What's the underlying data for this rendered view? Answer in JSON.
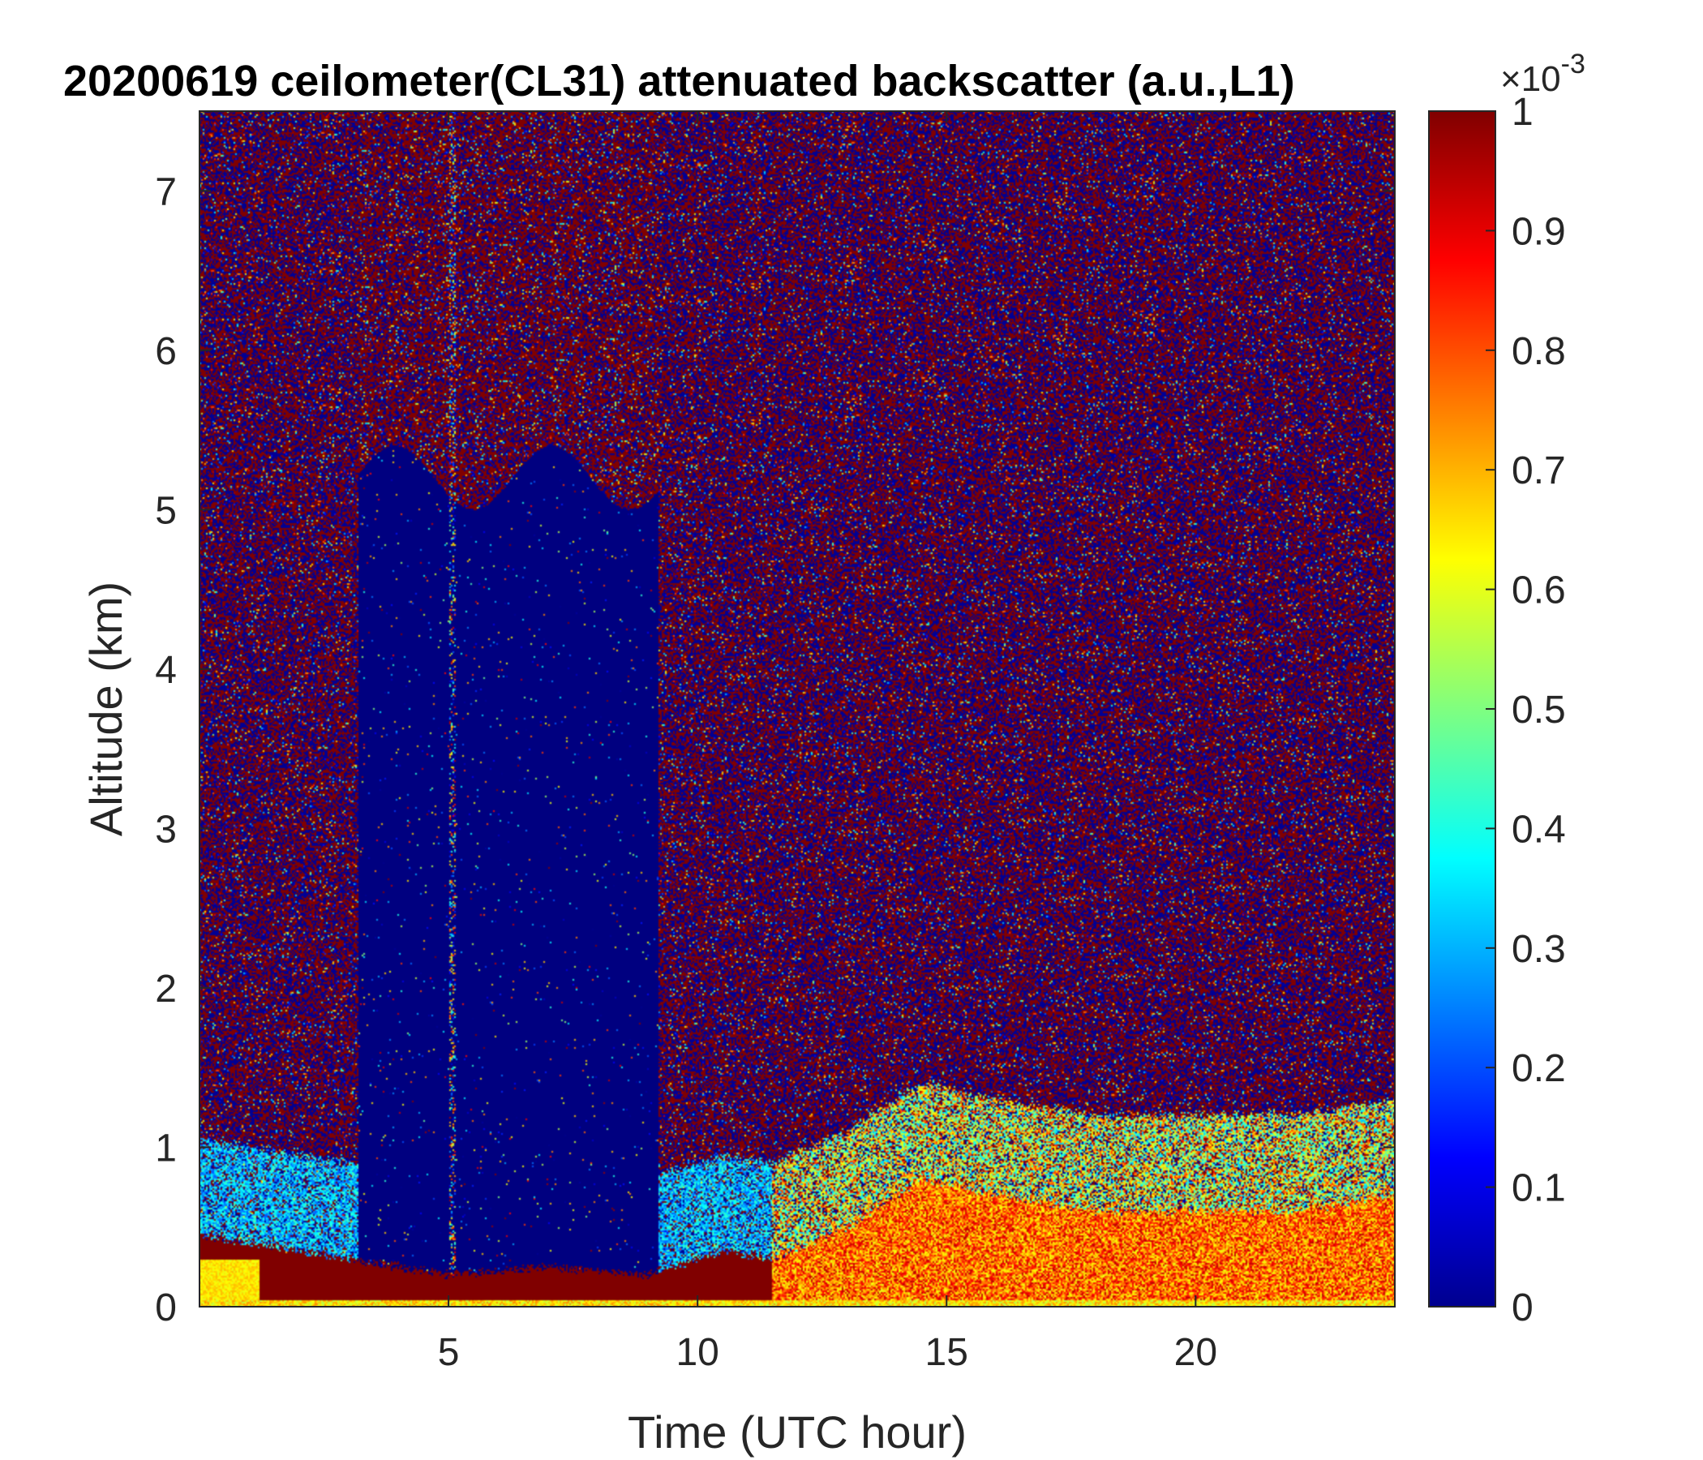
{
  "chart_data": {
    "type": "heatmap",
    "title": "20200619 ceilometer(CL31) attenuated backscatter (a.u.,L1)",
    "xlabel": "Time (UTC hour)",
    "ylabel": "Altitude (km)",
    "xlim": [
      0,
      24
    ],
    "ylim": [
      0,
      7.5
    ],
    "xticks": [
      5,
      10,
      15,
      20
    ],
    "yticks": [
      0,
      1,
      2,
      3,
      4,
      5,
      6,
      7
    ],
    "colormap": "jet",
    "colorbar": {
      "range": [
        0,
        1
      ],
      "ticks": [
        0,
        0.1,
        0.2,
        0.3,
        0.4,
        0.5,
        0.6,
        0.7,
        0.8,
        0.9,
        1
      ],
      "tick_labels": [
        "0",
        "0.1",
        "0.2",
        "0.3",
        "0.4",
        "0.5",
        "0.6",
        "0.7",
        "0.8",
        "0.9",
        "1"
      ],
      "exponent_base": "×10",
      "exponent_power": "-3"
    },
    "features": {
      "background_noise": "saturated random noise (dark red / dark blue) above boundary layer",
      "low_signal_period_hours": [
        3.2,
        9.2
      ],
      "boundary_layer_top_km": [
        [
          0,
          0.45
        ],
        [
          3,
          0.3
        ],
        [
          5,
          0.2
        ],
        [
          7,
          0.25
        ],
        [
          9,
          0.2
        ],
        [
          10.5,
          0.35
        ],
        [
          11.5,
          0.3
        ],
        [
          13,
          0.5
        ],
        [
          14.5,
          0.8
        ],
        [
          16,
          0.7
        ],
        [
          18,
          0.6
        ],
        [
          20,
          0.6
        ],
        [
          22,
          0.6
        ],
        [
          24,
          0.7
        ]
      ]
    }
  }
}
